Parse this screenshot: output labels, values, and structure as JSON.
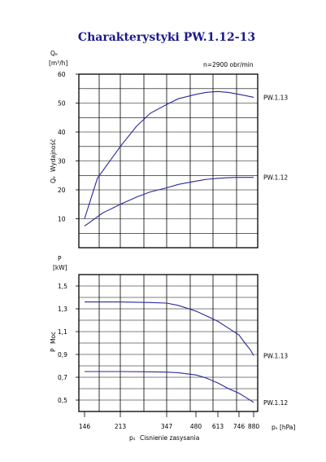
{
  "chart_data": {
    "type": "line",
    "title": "Charakterystyki PW.1.12-13",
    "x_ticks": [
      "146",
      "213",
      "347",
      "480",
      "613",
      "746",
      "880"
    ],
    "xlabel_symbol": "pₛ",
    "xlabel_text": "Cisnienie zasysania",
    "xunit": "pₛ [hPa]",
    "line_color": "#2a2a9a",
    "top": {
      "note": "n=2900 obr/min",
      "ylabel_symbol": "Qₑ",
      "ylabel_text": "Wydajność",
      "yunit_symbol": "Qₑ",
      "yunit": "[m³/h]",
      "ylim": [
        0,
        60
      ],
      "y_ticks": [
        "60",
        "50",
        "40",
        "30",
        "20",
        "10"
      ],
      "series": [
        {
          "name": "PW.1.13",
          "x": [
            146,
            170,
            213,
            260,
            300,
            347,
            400,
            480,
            540,
            613,
            680,
            746,
            813,
            880
          ],
          "y": [
            10,
            24,
            35,
            42,
            46.5,
            49.5,
            51.5,
            53,
            53.7,
            54,
            53.7,
            53,
            52.5,
            52
          ]
        },
        {
          "name": "PW.1.12",
          "x": [
            146,
            180,
            213,
            260,
            300,
            347,
            400,
            480,
            540,
            613,
            680,
            746,
            813,
            880
          ],
          "y": [
            7.5,
            12,
            15,
            17.5,
            19.3,
            20.7,
            21.9,
            23,
            23.6,
            24,
            24.2,
            24.3,
            24.3,
            24.3
          ]
        }
      ]
    },
    "bottom": {
      "ylabel_symbol": "P",
      "ylabel_text": "Moc",
      "yunit_symbol": "P",
      "yunit": "[kW]",
      "ylim": [
        0.4,
        1.6
      ],
      "y_ticks": [
        "1,5",
        "1,3",
        "1,1",
        "0,9",
        "0,7",
        "0,5"
      ],
      "series": [
        {
          "name": "PW.1.13",
          "x": [
            146,
            213,
            300,
            347,
            400,
            480,
            540,
            613,
            680,
            746,
            800,
            850,
            880
          ],
          "y": [
            1.36,
            1.36,
            1.355,
            1.35,
            1.33,
            1.28,
            1.24,
            1.19,
            1.13,
            1.07,
            1.0,
            0.94,
            0.89
          ]
        },
        {
          "name": "PW.1.12",
          "x": [
            146,
            213,
            300,
            347,
            400,
            480,
            540,
            613,
            680,
            746,
            813,
            880
          ],
          "y": [
            0.75,
            0.75,
            0.748,
            0.745,
            0.74,
            0.72,
            0.695,
            0.65,
            0.6,
            0.56,
            0.52,
            0.48
          ]
        }
      ]
    }
  }
}
